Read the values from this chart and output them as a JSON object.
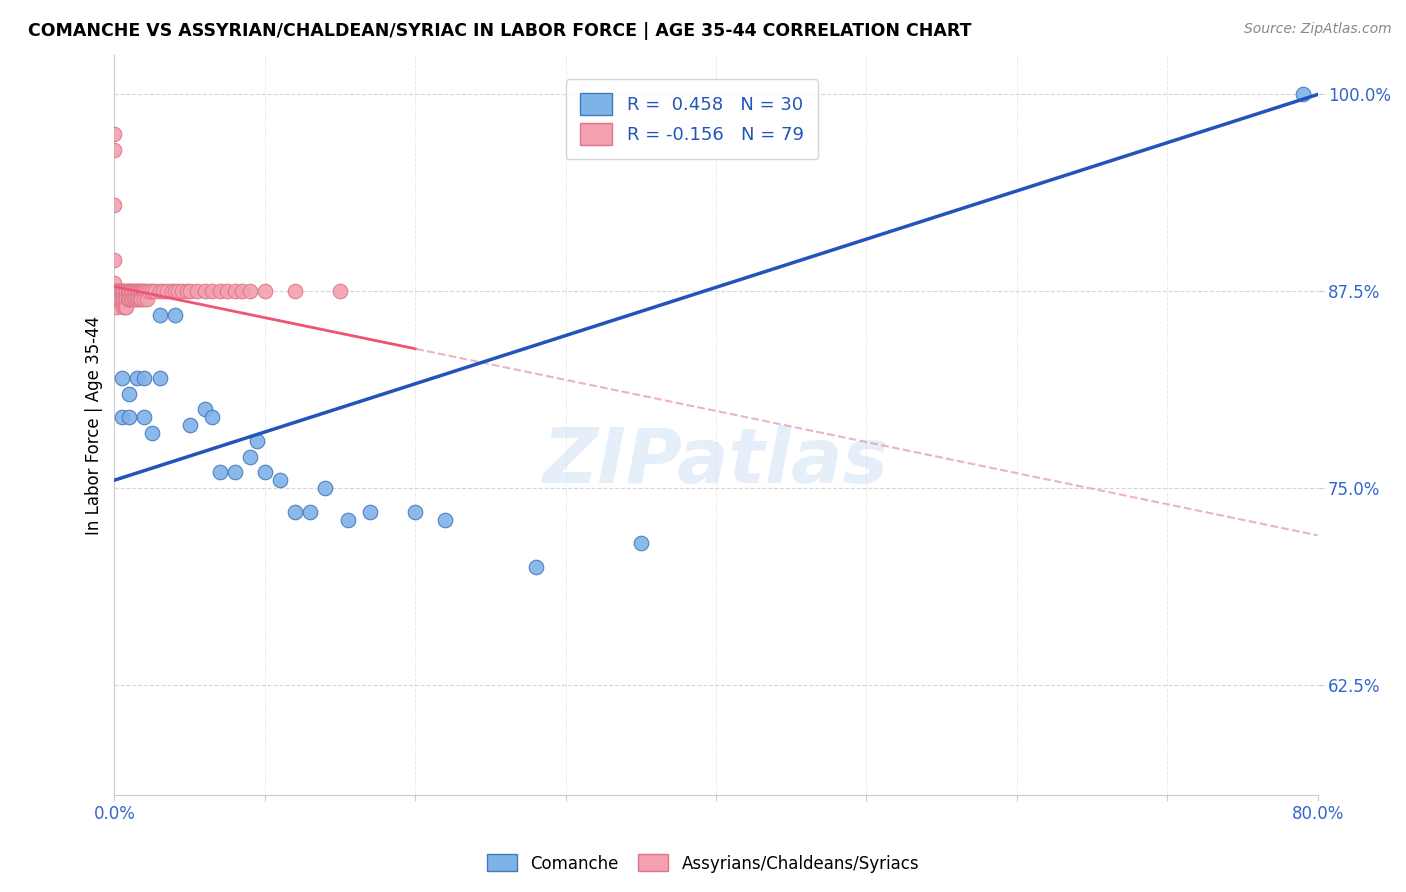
{
  "title": "COMANCHE VS ASSYRIAN/CHALDEAN/SYRIAC IN LABOR FORCE | AGE 35-44 CORRELATION CHART",
  "source": "Source: ZipAtlas.com",
  "ylabel": "In Labor Force | Age 35-44",
  "xlim": [
    0.0,
    0.8
  ],
  "ylim": [
    0.555,
    1.025
  ],
  "yticks": [
    0.625,
    0.75,
    0.875,
    1.0
  ],
  "ytick_labels": [
    "62.5%",
    "75.0%",
    "87.5%",
    "100.0%"
  ],
  "xticks": [
    0.0,
    0.1,
    0.2,
    0.3,
    0.4,
    0.5,
    0.6,
    0.7,
    0.8
  ],
  "xtick_labels": [
    "0.0%",
    "",
    "",
    "",
    "",
    "",
    "",
    "",
    "80.0%"
  ],
  "R_blue": 0.458,
  "N_blue": 30,
  "R_pink": -0.156,
  "N_pink": 79,
  "blue_color": "#7EB3E8",
  "pink_color": "#F4A0B0",
  "trendline_blue_color": "#2255BB",
  "trendline_pink_color": "#EE5577",
  "watermark": "ZIPatlas",
  "legend_label_blue": "Comanche",
  "legend_label_pink": "Assyrians/Chaldeans/Syriacs",
  "blue_x": [
    0.005,
    0.005,
    0.01,
    0.01,
    0.015,
    0.02,
    0.02,
    0.025,
    0.03,
    0.03,
    0.04,
    0.05,
    0.06,
    0.065,
    0.07,
    0.08,
    0.09,
    0.095,
    0.1,
    0.11,
    0.12,
    0.13,
    0.14,
    0.155,
    0.17,
    0.2,
    0.22,
    0.28,
    0.35,
    0.79
  ],
  "blue_y": [
    0.82,
    0.795,
    0.81,
    0.795,
    0.82,
    0.82,
    0.795,
    0.785,
    0.86,
    0.82,
    0.86,
    0.79,
    0.8,
    0.795,
    0.76,
    0.76,
    0.77,
    0.78,
    0.76,
    0.755,
    0.735,
    0.735,
    0.75,
    0.73,
    0.735,
    0.735,
    0.73,
    0.7,
    0.715,
    1.0
  ],
  "pink_x": [
    0.0,
    0.0,
    0.0,
    0.0,
    0.0,
    0.001,
    0.001,
    0.001,
    0.001,
    0.001,
    0.002,
    0.002,
    0.003,
    0.003,
    0.004,
    0.004,
    0.004,
    0.005,
    0.005,
    0.005,
    0.006,
    0.006,
    0.006,
    0.007,
    0.007,
    0.007,
    0.008,
    0.008,
    0.008,
    0.009,
    0.009,
    0.01,
    0.01,
    0.01,
    0.01,
    0.011,
    0.011,
    0.012,
    0.012,
    0.013,
    0.013,
    0.014,
    0.014,
    0.015,
    0.015,
    0.016,
    0.016,
    0.017,
    0.017,
    0.018,
    0.018,
    0.019,
    0.02,
    0.02,
    0.021,
    0.022,
    0.023,
    0.025,
    0.027,
    0.03,
    0.032,
    0.035,
    0.038,
    0.04,
    0.042,
    0.045,
    0.048,
    0.05,
    0.055,
    0.06,
    0.065,
    0.07,
    0.075,
    0.08,
    0.085,
    0.09,
    0.1,
    0.12,
    0.15
  ],
  "pink_y": [
    0.975,
    0.965,
    0.93,
    0.895,
    0.88,
    0.875,
    0.87,
    0.865,
    0.875,
    0.87,
    0.875,
    0.87,
    0.87,
    0.875,
    0.87,
    0.875,
    0.87,
    0.875,
    0.87,
    0.875,
    0.875,
    0.87,
    0.865,
    0.875,
    0.87,
    0.865,
    0.875,
    0.87,
    0.865,
    0.875,
    0.87,
    0.875,
    0.87,
    0.875,
    0.87,
    0.875,
    0.87,
    0.875,
    0.87,
    0.875,
    0.87,
    0.875,
    0.87,
    0.875,
    0.87,
    0.875,
    0.87,
    0.875,
    0.87,
    0.875,
    0.87,
    0.875,
    0.875,
    0.87,
    0.875,
    0.87,
    0.875,
    0.875,
    0.875,
    0.875,
    0.875,
    0.875,
    0.875,
    0.875,
    0.875,
    0.875,
    0.875,
    0.875,
    0.875,
    0.875,
    0.875,
    0.875,
    0.875,
    0.875,
    0.875,
    0.875,
    0.875,
    0.875,
    0.875
  ]
}
